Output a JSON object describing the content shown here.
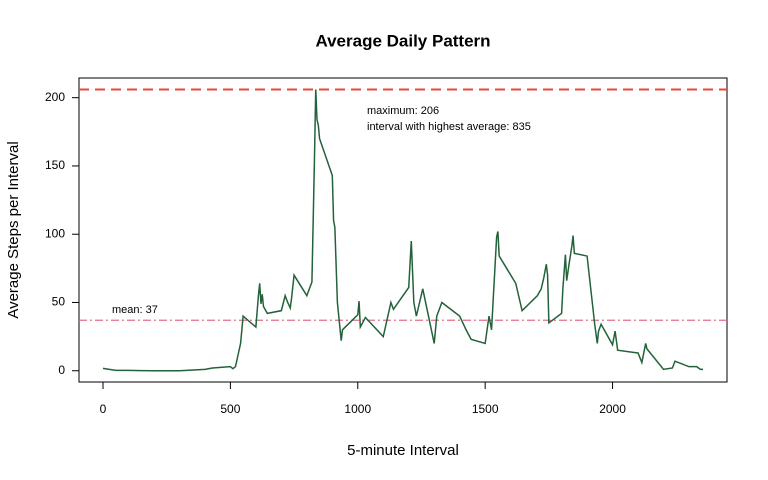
{
  "chart_data": {
    "type": "line",
    "title": "Average Daily Pattern",
    "xlabel": "5-minute Interval",
    "ylabel": "Average Steps per Interval",
    "x": [
      0,
      50,
      100,
      150,
      200,
      300,
      400,
      430,
      500,
      510,
      520,
      540,
      550,
      600,
      610,
      615,
      620,
      625,
      630,
      645,
      700,
      715,
      725,
      735,
      740,
      750,
      800,
      820,
      830,
      835,
      840,
      845,
      850,
      900,
      905,
      910,
      920,
      935,
      940,
      1000,
      1005,
      1010,
      1030,
      1100,
      1130,
      1140,
      1200,
      1210,
      1220,
      1230,
      1255,
      1300,
      1310,
      1330,
      1400,
      1425,
      1445,
      1500,
      1515,
      1525,
      1545,
      1550,
      1555,
      1620,
      1645,
      1705,
      1720,
      1730,
      1740,
      1745,
      1750,
      1800,
      1805,
      1815,
      1820,
      1830,
      1840,
      1845,
      1850,
      1900,
      1930,
      1940,
      1945,
      1955,
      2000,
      2010,
      2020,
      2100,
      2115,
      2130,
      2135,
      2200,
      2235,
      2245,
      2300,
      2330,
      2345,
      2355
    ],
    "series": [
      {
        "name": "average steps",
        "color": "#23623a",
        "values": [
          1.7,
          0.3,
          0.3,
          0.1,
          0,
          0,
          1,
          2,
          3,
          1.5,
          3,
          20,
          40,
          32,
          55,
          64,
          49,
          56,
          47,
          42,
          44,
          55,
          50,
          46,
          53,
          70,
          55,
          65,
          155,
          206,
          184,
          180,
          170,
          143,
          110,
          105,
          50,
          22,
          30,
          41,
          51,
          32,
          39,
          25,
          50,
          45,
          61,
          95,
          50,
          40,
          60,
          20,
          40,
          50,
          40,
          30,
          23,
          20,
          40,
          30,
          98,
          102,
          84,
          64,
          44,
          55,
          60,
          68,
          78,
          70,
          35,
          42,
          60,
          85,
          66,
          79,
          91,
          99,
          86,
          84,
          34,
          20,
          29,
          34,
          19,
          29,
          15,
          13,
          6,
          20,
          16,
          1,
          2,
          7,
          3,
          3,
          1,
          1
        ]
      }
    ],
    "reference_lines": [
      {
        "value": 206,
        "color": "#e8473b",
        "label": "maximum:  206",
        "label2": "interval with highest average:  835"
      },
      {
        "value": 37,
        "color": "#e0708a",
        "label": "mean:  37"
      }
    ],
    "xlim": [
      -94.2,
      2449.2
    ],
    "xticks": [
      0,
      500,
      1000,
      1500,
      2000
    ],
    "ylim": [
      -8.25,
      214.42
    ],
    "yticks": [
      0,
      50,
      100,
      150,
      200
    ]
  }
}
